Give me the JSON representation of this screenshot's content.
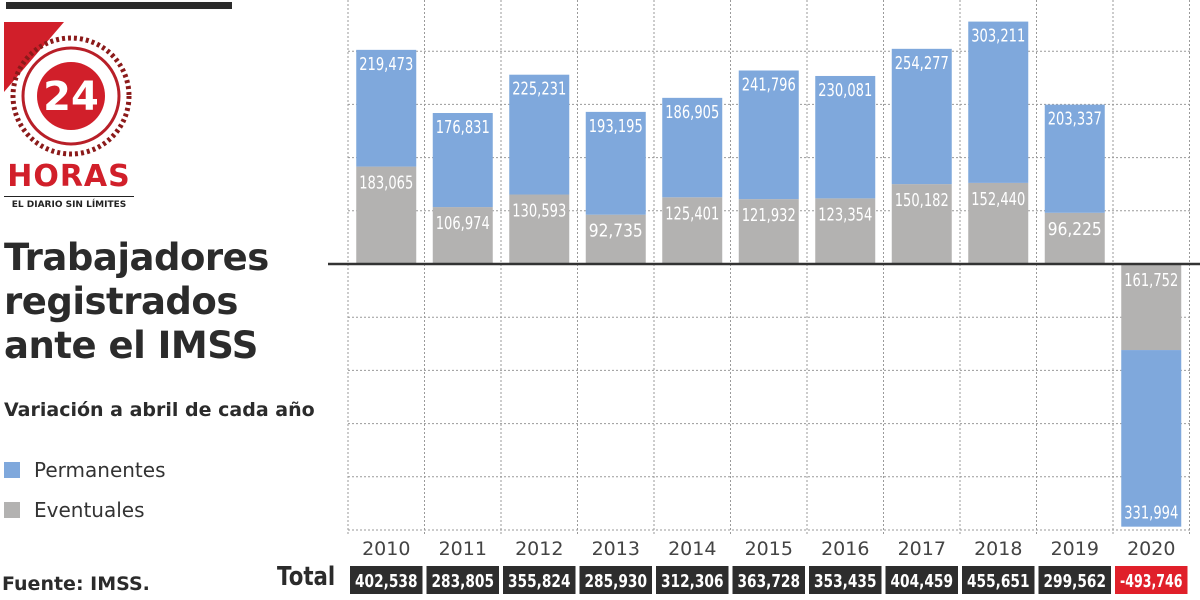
{
  "logo": {
    "number": "24",
    "brand": "HORAS",
    "tagline": "EL DIARIO SIN LÍMITES"
  },
  "title": "Trabajadores registrados ante el IMSS",
  "subtitle": "Variación a abril de cada año",
  "legend": [
    {
      "label": "Permanentes",
      "color": "#7fa8dc"
    },
    {
      "label": "Eventuales",
      "color": "#b3b2b1"
    }
  ],
  "source": "Fuente: IMSS.",
  "totals_label": "Total",
  "chart_data": {
    "type": "bar",
    "stacked": true,
    "categories": [
      "2010",
      "2011",
      "2012",
      "2013",
      "2014",
      "2015",
      "2016",
      "2017",
      "2018",
      "2019",
      "2020"
    ],
    "series": [
      {
        "name": "Permanentes",
        "color": "#7fa8dc",
        "values": [
          219473,
          176831,
          225231,
          193195,
          186905,
          241796,
          230081,
          254277,
          303211,
          203337,
          -331994
        ],
        "labels": [
          "219,473",
          "176,831",
          "225,231",
          "193,195",
          "186,905",
          "241,796",
          "230,081",
          "254,277",
          "303,211",
          "203,337",
          "331,994"
        ]
      },
      {
        "name": "Eventuales",
        "color": "#b3b2b1",
        "values": [
          183065,
          106974,
          130593,
          92735,
          125401,
          121932,
          123354,
          150182,
          152440,
          96225,
          -161752
        ],
        "labels": [
          "183,065",
          "106,974",
          "130,593",
          "92,735",
          "125,401",
          "121,932",
          "123,354",
          "150,182",
          "152,440",
          "96,225",
          "161,752"
        ]
      }
    ],
    "totals": [
      "402,538",
      "283,805",
      "355,824",
      "285,930",
      "312,306",
      "363,728",
      "353,435",
      "404,459",
      "455,651",
      "299,562",
      "-493,746"
    ],
    "total_values": [
      402538,
      283805,
      355824,
      285930,
      312306,
      363728,
      353435,
      404459,
      455651,
      299562,
      -493746
    ],
    "ylim": [
      -500000,
      500000
    ],
    "grid": true,
    "colors": {
      "total_box": "#2d2d2d",
      "total_negative": "#e0202a",
      "axis": "#333333",
      "grid": "#9a9a9a"
    }
  }
}
